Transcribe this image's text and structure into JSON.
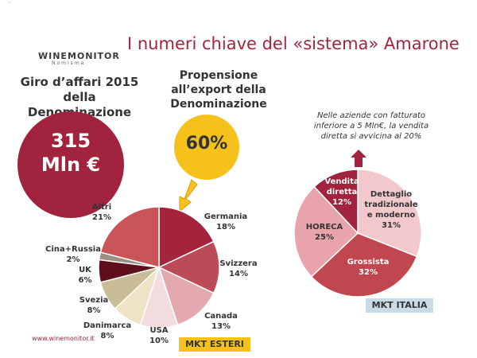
{
  "colors": {
    "brand": "#a3243b",
    "red_circle": "#a1233d",
    "yellow": "#f6c11a",
    "tag_blue": "#c9dbe6"
  },
  "header": {
    "logo_word": "WINEMONITOR",
    "logo_sub": "Nomisma",
    "title": "I numeri chiave del «sistema» Amarone",
    "url": "www.winemonitor.it"
  },
  "kpi": {
    "giro_label_1": "Giro d’affari 2015",
    "giro_label_2": "della Denominazione",
    "giro_value_1": "315",
    "giro_value_2": "Mln €",
    "export_label_1": "Propensione",
    "export_label_2": "all’export della",
    "export_label_3": "Denominazione",
    "export_value": "60%"
  },
  "note": {
    "line1": "Nelle aziende con fatturato",
    "line2": "inferiore a 5 Mln€, la vendita",
    "line3": "diretta si avvicina al 20%"
  },
  "chart_data": [
    {
      "type": "pie",
      "title": "MKT ESTERI",
      "categories": [
        "Germania",
        "Svizzera",
        "Canada",
        "USA",
        "Danimarca",
        "Svezia",
        "UK",
        "Cina+Russia",
        "Altri"
      ],
      "values": [
        18,
        14,
        13,
        10,
        8,
        8,
        6,
        2,
        21
      ],
      "labels": [
        "18%",
        "14%",
        "13%",
        "10%",
        "8%",
        "8%",
        "6%",
        "2%",
        "21%"
      ],
      "colors": [
        "#a3243b",
        "#bd4a59",
        "#e3a9ae",
        "#f2dcde",
        "#eee3c5",
        "#c9bd98",
        "#5e0f1b",
        "#9e9080",
        "#c95559"
      ],
      "legend": "labels-around"
    },
    {
      "type": "pie",
      "title": "MKT ITALIA",
      "categories": [
        "Dettaglio tradizionale e moderno",
        "Grossista",
        "HORECA",
        "Vendita diretta"
      ],
      "label_lines": [
        [
          "Dettaglio",
          "tradizionale",
          "e moderno"
        ],
        [
          "Grossista"
        ],
        [
          "HORECA"
        ],
        [
          "Vendita",
          "diretta"
        ]
      ],
      "values": [
        31,
        32,
        25,
        12
      ],
      "labels": [
        "31%",
        "32%",
        "25%",
        "12%"
      ],
      "colors": [
        "#f3c8cd",
        "#c0464f",
        "#e9a3aa",
        "#a1233d"
      ],
      "legend": "labels-inside"
    }
  ]
}
